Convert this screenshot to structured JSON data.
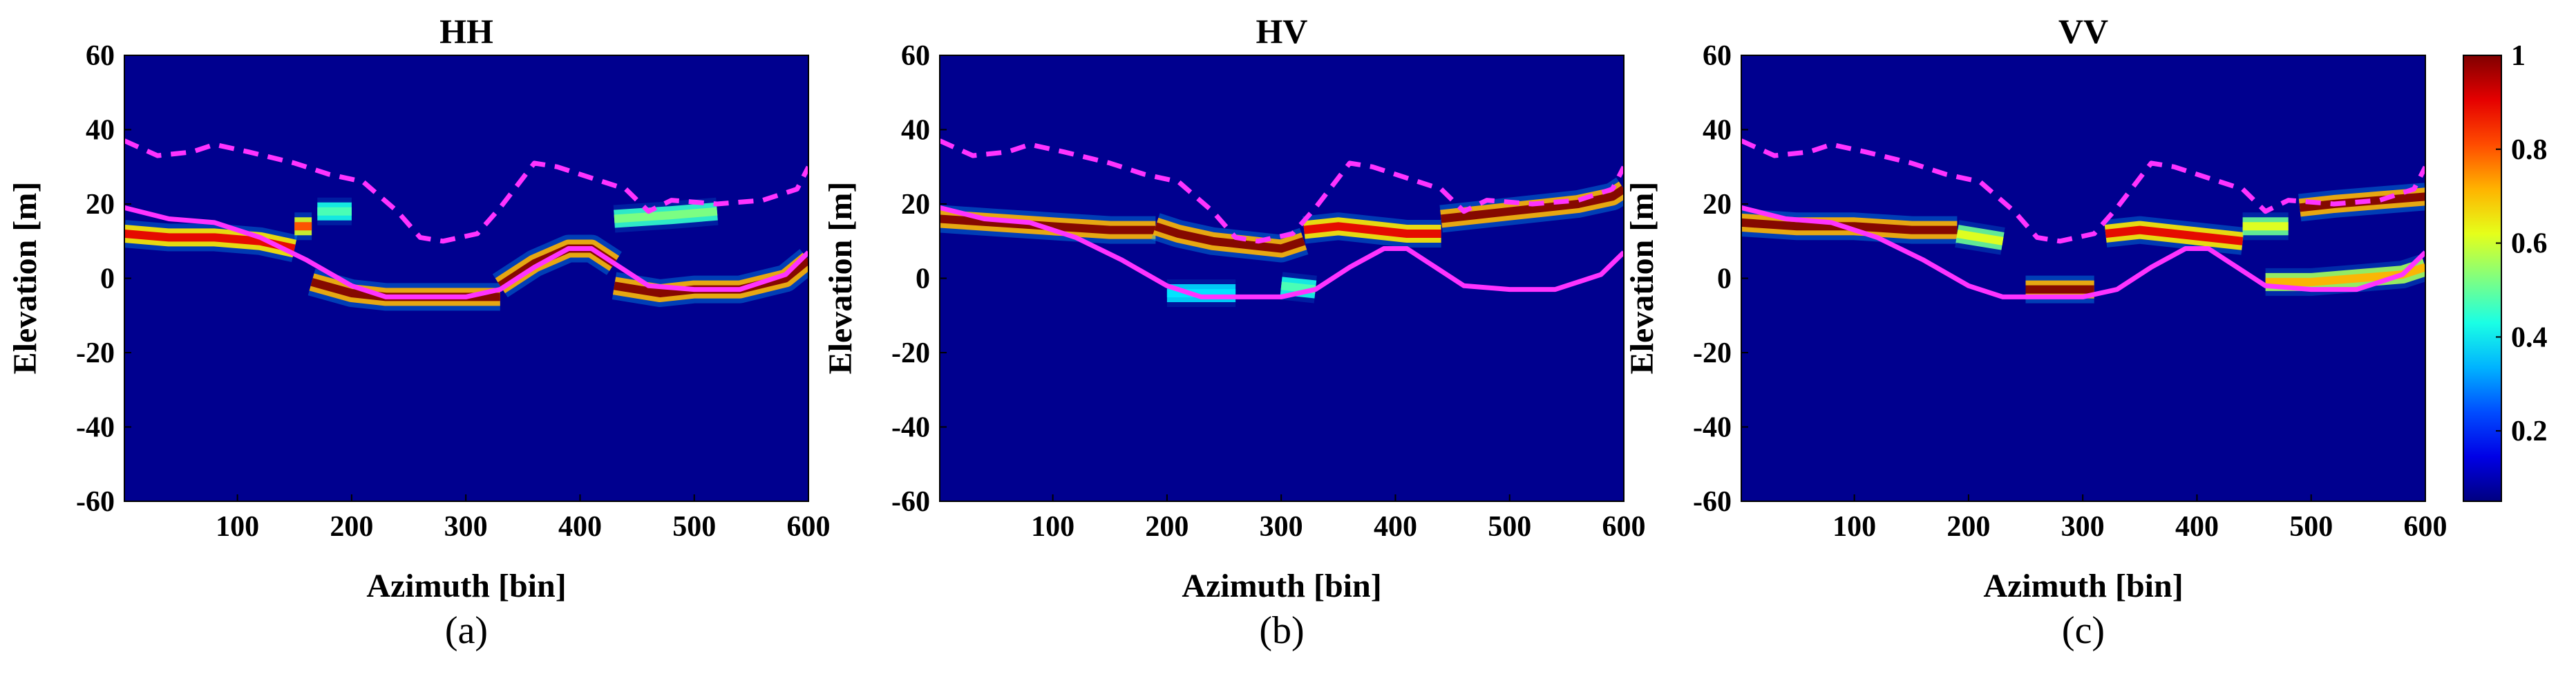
{
  "figure": {
    "colorbar": {
      "ticks": [
        {
          "value": 1,
          "label": "1"
        },
        {
          "value": 0.8,
          "label": "0.8"
        },
        {
          "value": 0.6,
          "label": "0.6"
        },
        {
          "value": 0.4,
          "label": "0.4"
        },
        {
          "value": 0.2,
          "label": "0.2"
        }
      ],
      "range": [
        0.05,
        1
      ],
      "colormap": "jet"
    },
    "colors": {
      "background": "#00008f",
      "dashed_line": "#ff33ff",
      "solid_line": "#ff33ff",
      "axis": "#000000"
    }
  },
  "chart_data": [
    {
      "type": "heatmap",
      "title": "HH",
      "caption": "(a)",
      "xlabel": "Azimuth [bin]",
      "ylabel": "Elevation [m]",
      "xlim": [
        1,
        600
      ],
      "ylim": [
        -60,
        60
      ],
      "xticks": [
        100,
        200,
        300,
        400,
        500,
        600
      ],
      "yticks": [
        60,
        40,
        20,
        0,
        -20,
        -40,
        -60
      ],
      "dashed_line": {
        "x": [
          1,
          30,
          60,
          80,
          110,
          150,
          180,
          210,
          240,
          260,
          280,
          310,
          330,
          360,
          380,
          410,
          440,
          460,
          480,
          520,
          560,
          590,
          600
        ],
        "y": [
          37,
          33,
          34,
          36,
          34,
          31,
          28,
          26,
          18,
          11,
          10,
          12,
          19,
          31,
          30,
          27,
          24,
          18,
          21,
          20,
          21,
          24,
          30
        ]
      },
      "solid_line": {
        "x": [
          1,
          40,
          80,
          120,
          160,
          200,
          230,
          260,
          300,
          330,
          360,
          390,
          410,
          430,
          460,
          500,
          540,
          580,
          600
        ],
        "y": [
          19,
          16,
          15,
          11,
          5,
          -2,
          -5,
          -5,
          -5,
          -3,
          3,
          8,
          8,
          4,
          -2,
          -3,
          -3,
          1,
          7
        ]
      },
      "intensity_bands": [
        {
          "x": [
            1,
            40,
            80,
            120,
            150
          ],
          "y": [
            12,
            11,
            11,
            10,
            8
          ],
          "strength": 0.9
        },
        {
          "x": [
            150,
            165
          ],
          "y": [
            14,
            14
          ],
          "strength": 0.8
        },
        {
          "x": [
            165,
            200,
            230,
            260,
            300,
            330
          ],
          "y": [
            -1,
            -4,
            -5,
            -5,
            -5,
            -5
          ],
          "strength": 1.0
        },
        {
          "x": [
            330,
            360,
            390,
            410,
            430
          ],
          "y": [
            -2,
            4,
            8,
            8,
            4
          ],
          "strength": 1.0
        },
        {
          "x": [
            430,
            470,
            500,
            540,
            580,
            600
          ],
          "y": [
            -2,
            -4,
            -3,
            -3,
            0,
            5
          ],
          "strength": 1.0
        },
        {
          "x": [
            170,
            200
          ],
          "y": [
            18,
            18
          ],
          "strength": 0.45
        },
        {
          "x": [
            430,
            480,
            520
          ],
          "y": [
            16,
            17,
            18
          ],
          "strength": 0.5
        }
      ]
    },
    {
      "type": "heatmap",
      "title": "HV",
      "caption": "(b)",
      "xlabel": "Azimuth [bin]",
      "ylabel": "Elevation [m]",
      "xlim": [
        1,
        600
      ],
      "ylim": [
        -60,
        60
      ],
      "xticks": [
        100,
        200,
        300,
        400,
        500,
        600
      ],
      "yticks": [
        60,
        40,
        20,
        0,
        -20,
        -40,
        -60
      ],
      "dashed_line": {
        "x": [
          1,
          30,
          60,
          80,
          110,
          150,
          180,
          210,
          240,
          260,
          280,
          310,
          330,
          360,
          380,
          410,
          440,
          460,
          480,
          520,
          560,
          590,
          600
        ],
        "y": [
          37,
          33,
          34,
          36,
          34,
          31,
          28,
          26,
          18,
          11,
          10,
          12,
          19,
          31,
          30,
          27,
          24,
          18,
          21,
          20,
          21,
          24,
          30
        ]
      },
      "solid_line": {
        "x": [
          1,
          40,
          80,
          120,
          160,
          200,
          230,
          260,
          300,
          330,
          360,
          390,
          410,
          430,
          460,
          500,
          540,
          580,
          600
        ],
        "y": [
          19,
          16,
          15,
          11,
          5,
          -2,
          -5,
          -5,
          -5,
          -3,
          3,
          8,
          8,
          4,
          -2,
          -3,
          -3,
          1,
          7
        ]
      },
      "intensity_bands": [
        {
          "x": [
            1,
            50,
            100,
            150,
            190
          ],
          "y": [
            16,
            15,
            14,
            13,
            13
          ],
          "strength": 1.0
        },
        {
          "x": [
            190,
            210,
            240,
            270,
            300,
            320
          ],
          "y": [
            14,
            12,
            10,
            9,
            8,
            10
          ],
          "strength": 1.0
        },
        {
          "x": [
            320,
            350,
            380,
            410,
            440
          ],
          "y": [
            13,
            14,
            13,
            12,
            12
          ],
          "strength": 0.9
        },
        {
          "x": [
            440,
            470,
            500,
            530,
            560,
            590,
            600
          ],
          "y": [
            16,
            17,
            18,
            19,
            20,
            22,
            24
          ],
          "strength": 1.0
        },
        {
          "x": [
            300,
            330
          ],
          "y": [
            -2,
            -3
          ],
          "strength": 0.45
        },
        {
          "x": [
            200,
            260
          ],
          "y": [
            -4,
            -4
          ],
          "strength": 0.35
        }
      ]
    },
    {
      "type": "heatmap",
      "title": "VV",
      "caption": "(c)",
      "xlabel": "Azimuth [bin]",
      "ylabel": "Elevation [m]",
      "xlim": [
        1,
        600
      ],
      "ylim": [
        -60,
        60
      ],
      "xticks": [
        100,
        200,
        300,
        400,
        500,
        600
      ],
      "yticks": [
        60,
        40,
        20,
        0,
        -20,
        -40,
        -60
      ],
      "dashed_line": {
        "x": [
          1,
          30,
          60,
          80,
          110,
          150,
          180,
          210,
          240,
          260,
          280,
          310,
          330,
          360,
          380,
          410,
          440,
          460,
          480,
          520,
          560,
          590,
          600
        ],
        "y": [
          37,
          33,
          34,
          36,
          34,
          31,
          28,
          26,
          18,
          11,
          10,
          12,
          19,
          31,
          30,
          27,
          24,
          18,
          21,
          20,
          21,
          24,
          30
        ]
      },
      "solid_line": {
        "x": [
          1,
          40,
          80,
          120,
          160,
          200,
          230,
          260,
          300,
          330,
          360,
          390,
          410,
          430,
          460,
          500,
          540,
          580,
          600
        ],
        "y": [
          19,
          16,
          15,
          11,
          5,
          -2,
          -5,
          -5,
          -5,
          -3,
          3,
          8,
          8,
          4,
          -2,
          -3,
          -3,
          1,
          7
        ]
      },
      "intensity_bands": [
        {
          "x": [
            1,
            50,
            100,
            150,
            190
          ],
          "y": [
            15,
            14,
            14,
            13,
            13
          ],
          "strength": 1.0
        },
        {
          "x": [
            190,
            230
          ],
          "y": [
            12,
            10
          ],
          "strength": 0.6
        },
        {
          "x": [
            250,
            310
          ],
          "y": [
            -3,
            -3
          ],
          "strength": 1.0
        },
        {
          "x": [
            320,
            350,
            380,
            410,
            440
          ],
          "y": [
            12,
            13,
            12,
            11,
            10
          ],
          "strength": 0.9
        },
        {
          "x": [
            440,
            480
          ],
          "y": [
            14,
            14
          ],
          "strength": 0.6
        },
        {
          "x": [
            490,
            520,
            560,
            600
          ],
          "y": [
            19,
            20,
            21,
            22
          ],
          "strength": 1.0
        },
        {
          "x": [
            460,
            500,
            540,
            580,
            600
          ],
          "y": [
            -1,
            -1,
            0,
            1,
            3
          ],
          "strength": 0.7
        }
      ]
    }
  ]
}
